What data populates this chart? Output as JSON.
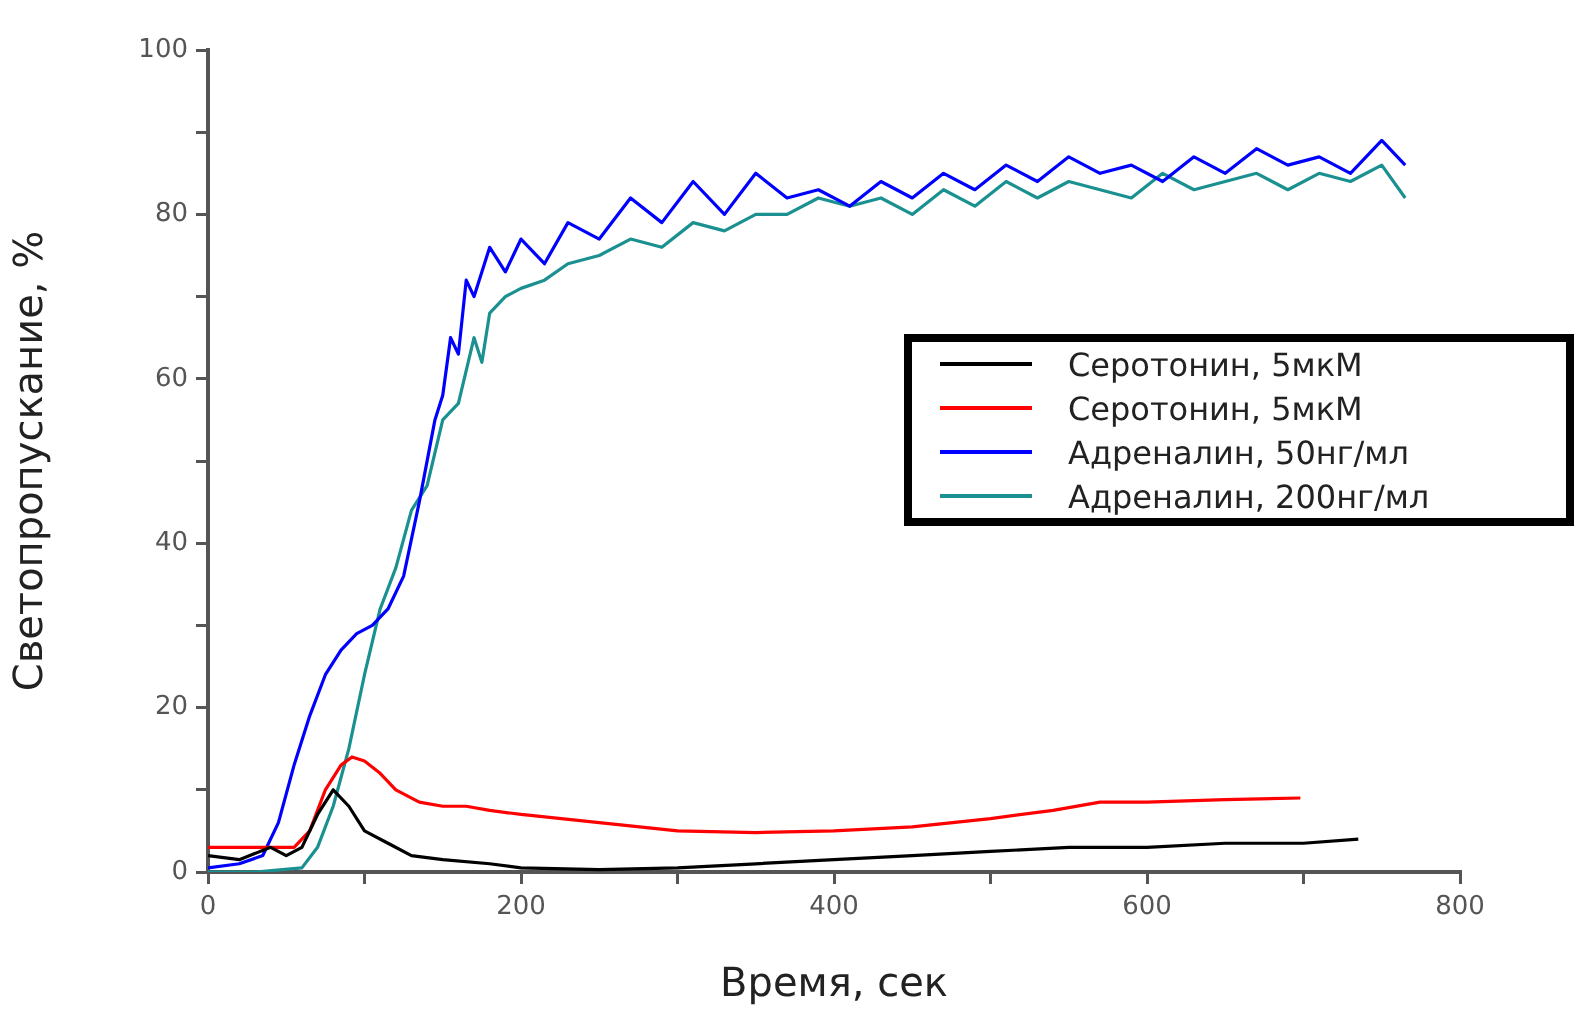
{
  "chart_data": {
    "type": "line",
    "xlabel": "Время, сек",
    "ylabel": "Светопропускание, %",
    "xlim": [
      0,
      800
    ],
    "ylim": [
      0,
      100
    ],
    "xticks": [
      0,
      {
        "value": 100,
        "label": null
      },
      200,
      {
        "value": 300,
        "label": null
      },
      400,
      {
        "value": 500,
        "label": null
      },
      600,
      {
        "value": 700,
        "label": null
      },
      800
    ],
    "yticks": [
      0,
      {
        "value": 10,
        "label": null
      },
      20,
      {
        "value": 30,
        "label": null
      },
      40,
      {
        "value": 50,
        "label": null
      },
      60,
      {
        "value": 70,
        "label": null
      },
      80,
      {
        "value": 90,
        "label": null
      },
      100
    ],
    "grid": false,
    "legend": "right",
    "marker": "none",
    "line_style": "solid",
    "series": [
      {
        "name": "Серотонин, 5мкМ",
        "color": "#000000",
        "x": [
          0,
          20,
          40,
          50,
          60,
          70,
          80,
          90,
          100,
          115,
          130,
          150,
          180,
          200,
          250,
          300,
          350,
          400,
          450,
          500,
          550,
          600,
          650,
          700,
          735
        ],
        "values": [
          2,
          1.5,
          3,
          2,
          3,
          7,
          10,
          8,
          5,
          3.5,
          2,
          1.5,
          1,
          0.5,
          0.3,
          0.5,
          1,
          1.5,
          2,
          2.5,
          3,
          3,
          3.5,
          3.5,
          4
        ]
      },
      {
        "name": "Серотонин, 5мкМ",
        "color": "#ff0000",
        "x": [
          0,
          20,
          40,
          55,
          65,
          75,
          85,
          92,
          100,
          110,
          120,
          135,
          150,
          165,
          180,
          200,
          250,
          300,
          350,
          400,
          450,
          500,
          540,
          570,
          600,
          650,
          698
        ],
        "values": [
          3,
          3,
          3,
          3,
          5,
          10,
          13,
          14,
          13.5,
          12,
          10,
          8.5,
          8,
          8,
          7.5,
          7,
          6,
          5,
          4.8,
          5,
          5.5,
          6.5,
          7.5,
          8.5,
          8.5,
          8.8,
          9
        ]
      },
      {
        "name": "Адреналин, 50нг/мл",
        "color": "#0000ff",
        "x": [
          0,
          20,
          35,
          45,
          55,
          65,
          75,
          85,
          95,
          105,
          115,
          125,
          135,
          145,
          150,
          155,
          160,
          165,
          170,
          180,
          190,
          200,
          215,
          230,
          250,
          270,
          290,
          310,
          330,
          350,
          370,
          390,
          410,
          430,
          450,
          470,
          490,
          510,
          530,
          550,
          570,
          590,
          610,
          630,
          650,
          670,
          690,
          710,
          730,
          750,
          765
        ],
        "values": [
          0.5,
          1,
          2,
          6,
          13,
          19,
          24,
          27,
          29,
          30,
          32,
          36,
          45,
          55,
          58,
          65,
          63,
          72,
          70,
          76,
          73,
          77,
          74,
          79,
          77,
          82,
          79,
          84,
          80,
          85,
          82,
          83,
          81,
          84,
          82,
          85,
          83,
          86,
          84,
          87,
          85,
          86,
          84,
          87,
          85,
          88,
          86,
          87,
          85,
          89,
          86
        ]
      },
      {
        "name": "Адреналин, 200нг/мл",
        "color": "#1a9090",
        "x": [
          0,
          30,
          60,
          70,
          80,
          90,
          100,
          110,
          120,
          130,
          140,
          150,
          160,
          170,
          175,
          180,
          190,
          200,
          215,
          230,
          250,
          270,
          290,
          310,
          330,
          350,
          370,
          390,
          410,
          430,
          450,
          470,
          490,
          510,
          530,
          550,
          570,
          590,
          610,
          630,
          650,
          670,
          690,
          710,
          730,
          750,
          765
        ],
        "values": [
          0,
          0,
          0.5,
          3,
          8,
          15,
          24,
          32,
          37,
          44,
          47,
          55,
          57,
          65,
          62,
          68,
          70,
          71,
          72,
          74,
          75,
          77,
          76,
          79,
          78,
          80,
          80,
          82,
          81,
          82,
          80,
          83,
          81,
          84,
          82,
          84,
          83,
          82,
          85,
          83,
          84,
          85,
          83,
          85,
          84,
          86,
          82
        ]
      }
    ]
  }
}
